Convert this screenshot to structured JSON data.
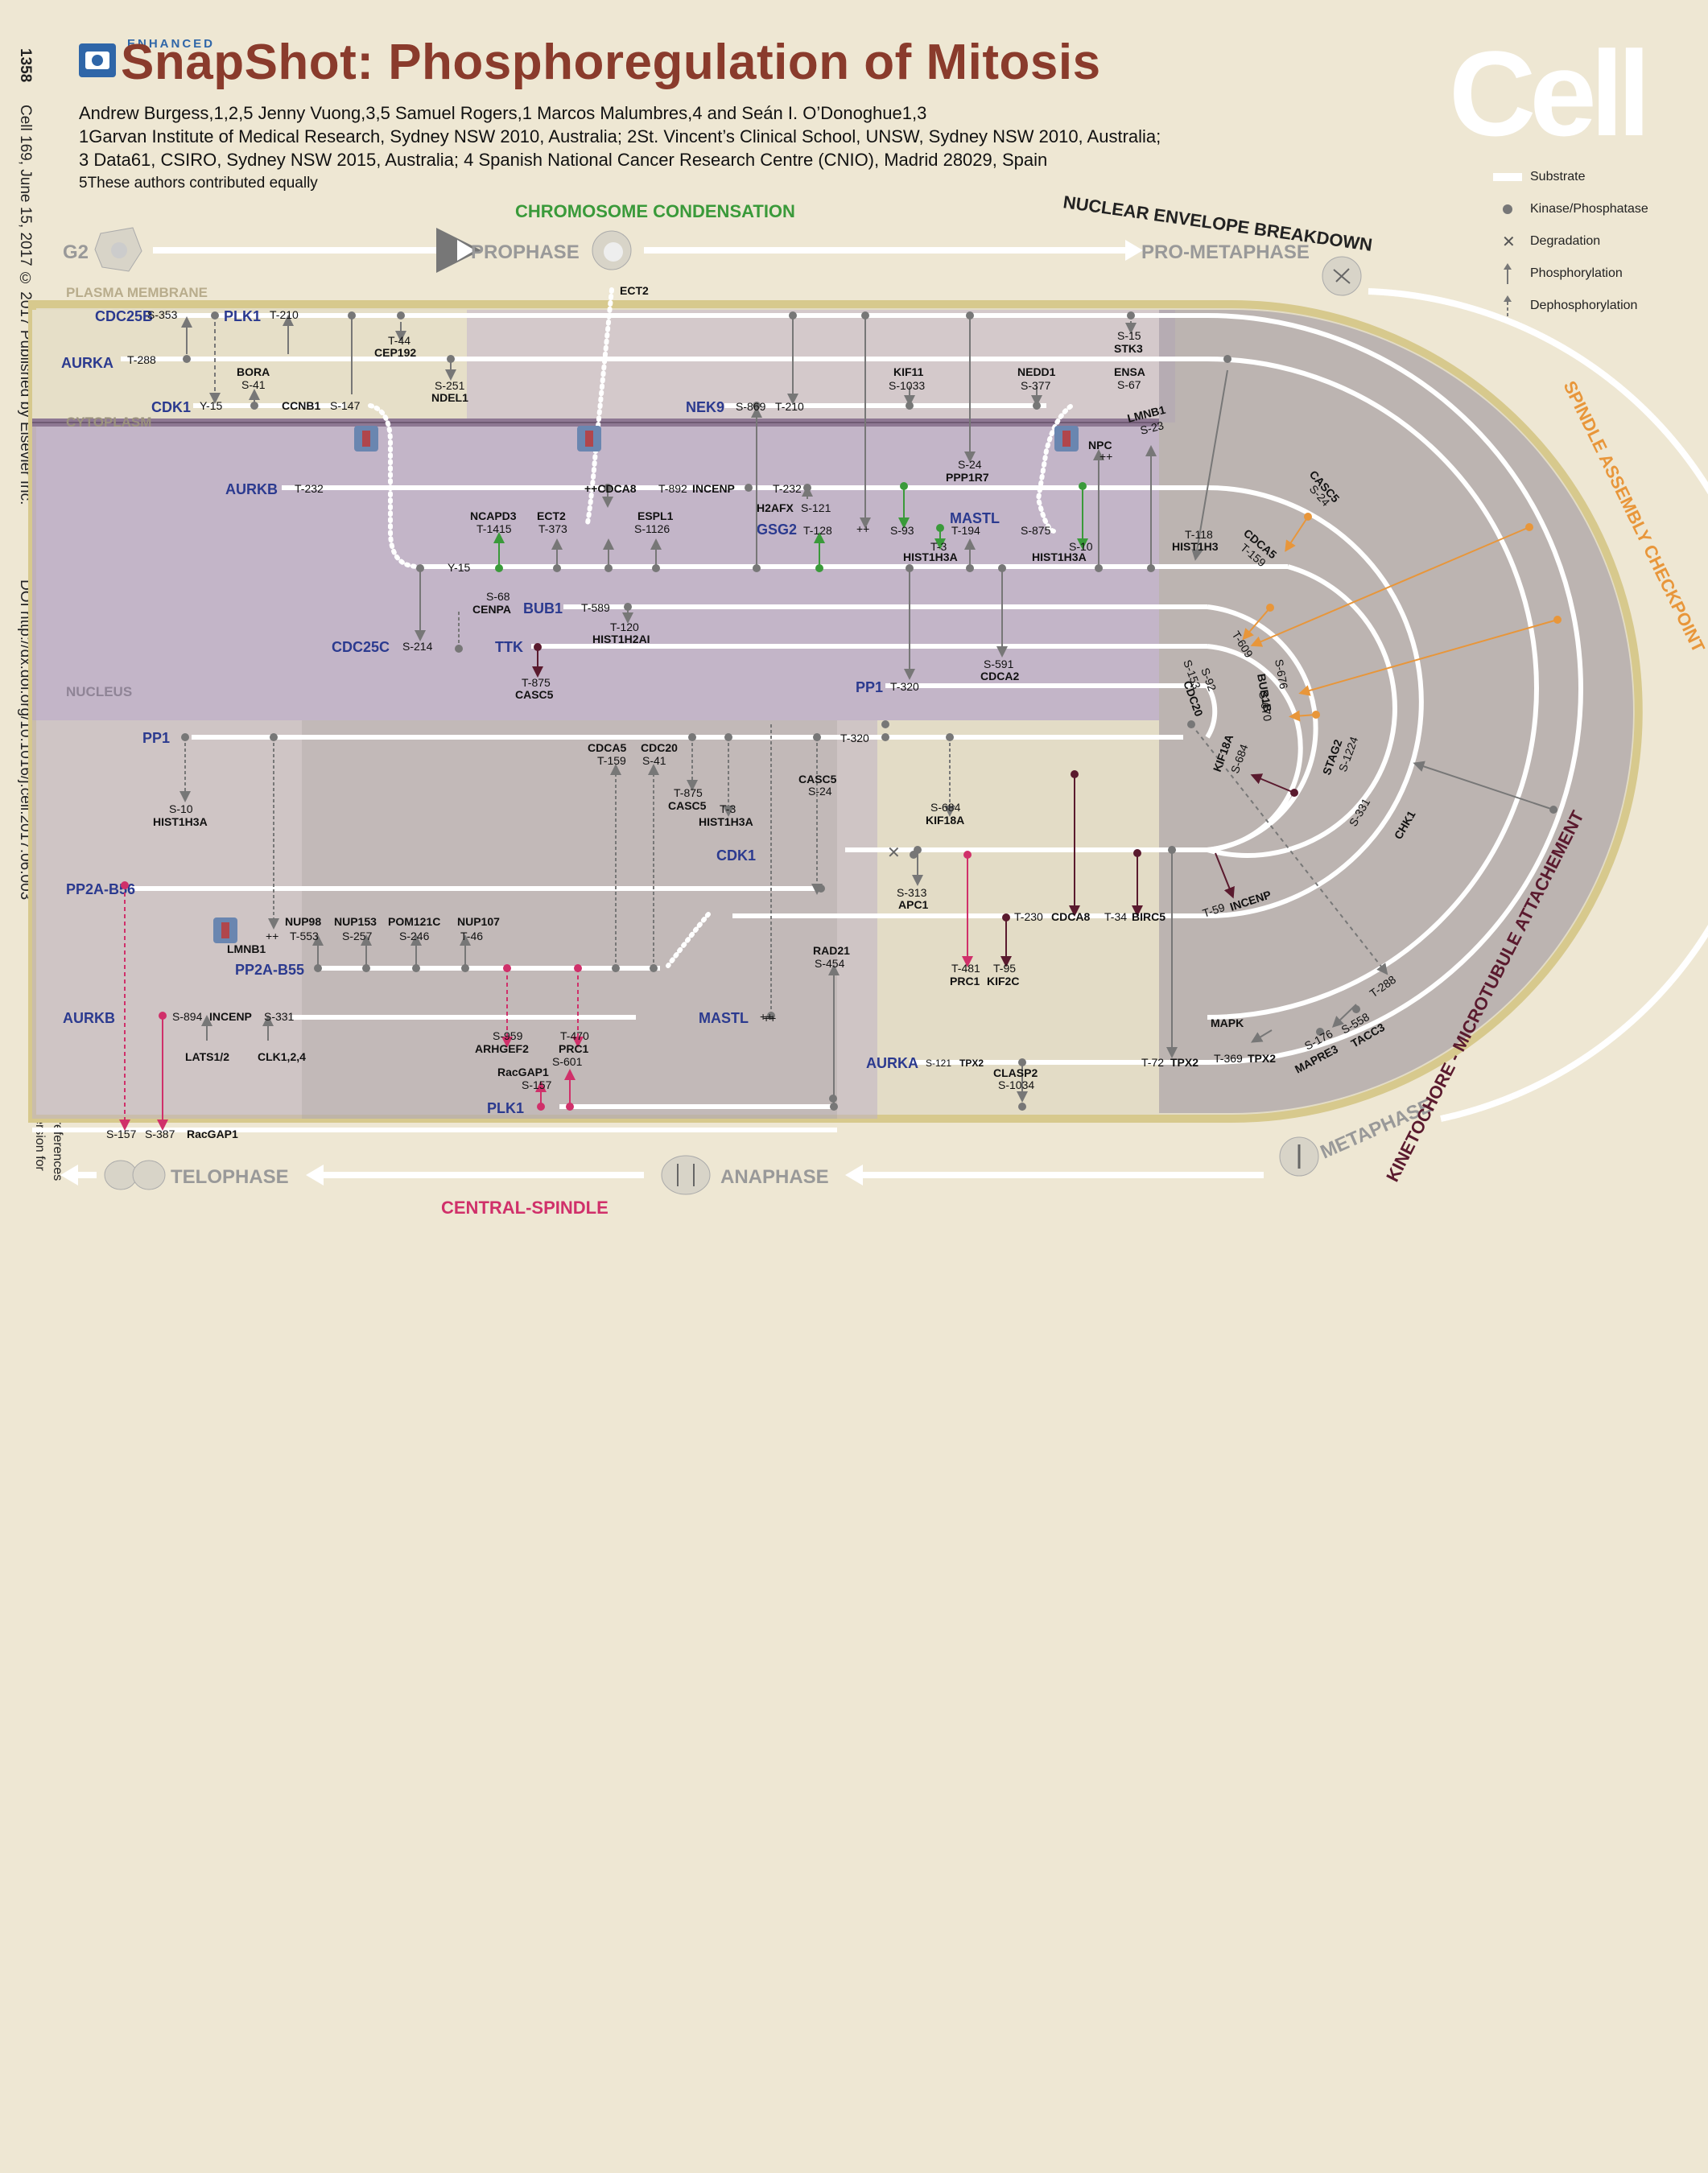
{
  "header": {
    "page_number": "1358",
    "journal_citation": "Cell 169, June 15, 2017 © 2017 Published by Elsevier Inc.",
    "doi": "DOI http://dx.doi.org/10.1016/j.cell.2017.06.003",
    "see_online": "See online version for",
    "see_online2": "legends and references",
    "enhanced": "ENHANCED",
    "title": "SnapShot: Phosphoregulation of Mitosis",
    "authors": "Andrew Burgess,1,2,5 Jenny Vuong,3,5 Samuel Rogers,1 Marcos Malumbres,4 and Seán I. O’Donoghue1,3",
    "affil1": "1Garvan Institute of Medical Research, Sydney NSW 2010, Australia; 2St. Vincent’s Clinical School, UNSW, Sydney NSW 2010, Australia;",
    "affil2": "3 Data61, CSIRO, Sydney NSW 2015, Australia; 4 Spanish National Cancer Research Centre (CNIO), Madrid 28029, Spain",
    "affil3": "5These authors contributed equally",
    "journal_logo": "Cell"
  },
  "legend": [
    {
      "icon": "substrate-bar",
      "label": "Substrate"
    },
    {
      "icon": "kinase-dot",
      "label": "Kinase/Phosphatase"
    },
    {
      "icon": "degradation-x",
      "label": "Degradation"
    },
    {
      "icon": "solid-arrow",
      "label": "Phosphorylation"
    },
    {
      "icon": "dashed-arrow",
      "label": "Dephosphorylation"
    }
  ],
  "phases": {
    "g2": "G2",
    "prophase": "PROPHASE",
    "prometaphase": "PRO-METAPHASE",
    "metaphase": "METAPHASE",
    "anaphase": "ANAPHASE",
    "telophase": "TELOPHASE",
    "chromosome_condensation": "CHROMOSOME CONDENSATION",
    "nuclear_envelope_breakdown": "NUCLEAR ENVELOPE BREAKDOWN",
    "spindle_assembly_checkpoint": "SPINDLE ASSEMBLY CHECKPOINT",
    "kinetochore_attachment": "KINETOCHORE - MICROTUBULE ATTACHEMENT",
    "central_spindle": "CENTRAL-SPINDLE"
  },
  "compartments": {
    "plasma_membrane": "PLASMA MEMBRANE",
    "cytoplasm": "CYTOPLASM",
    "nucleus": "NUCLEUS"
  },
  "colors": {
    "background": "#eee7d3",
    "title": "#8a3b2c",
    "kinase_label": "#2b3a8f",
    "green": "#3a9a3a",
    "orange": "#e8963a",
    "magenta": "#d0306a",
    "maroon": "#5a1a2e",
    "nucleus": "#b8a8c8"
  },
  "kinases": {
    "cdc25b": "CDC25B",
    "plk1_top": "PLK1",
    "aurka_top": "AURKA",
    "cdk1_top": "CDK1",
    "aurkb_top": "AURKB",
    "cdc25c": "CDC25C",
    "nek9": "NEK9",
    "gsg2": "GSG2",
    "mastl_top": "MASTL",
    "bub1": "BUB1",
    "ttk": "TTK",
    "pp1_mid": "PP1",
    "pp1_left": "PP1",
    "pp2a_b56": "PP2A-B56",
    "pp2a_b55": "PP2A-B55",
    "aurkb_bottom": "AURKB",
    "plk1_bottom": "PLK1",
    "mastl_bottom": "MASTL",
    "cdk1_bottom": "CDK1",
    "aurka_bottom": "AURKA"
  },
  "labels": [
    {
      "id": "l1",
      "text": "S-353"
    },
    {
      "id": "l2",
      "text": "T-210"
    },
    {
      "id": "l3",
      "text": "T-44"
    },
    {
      "id": "l4",
      "text": "CEP192"
    },
    {
      "id": "l5",
      "text": "T-288"
    },
    {
      "id": "l6",
      "text": "BORA"
    },
    {
      "id": "l7",
      "text": "S-41"
    },
    {
      "id": "l8",
      "text": "S-251"
    },
    {
      "id": "l9",
      "text": "NDEL1"
    },
    {
      "id": "l10",
      "text": "Y-15"
    },
    {
      "id": "l11",
      "text": "CCNB1"
    },
    {
      "id": "l12",
      "text": "S-147"
    },
    {
      "id": "l13",
      "text": "ECT2"
    },
    {
      "id": "l14",
      "text": "S-869"
    },
    {
      "id": "l15",
      "text": "T-210"
    },
    {
      "id": "l16",
      "text": "KIF11"
    },
    {
      "id": "l17",
      "text": "S-1033"
    },
    {
      "id": "l18",
      "text": "NEDD1"
    },
    {
      "id": "l19",
      "text": "S-377"
    },
    {
      "id": "l20",
      "text": "ENSA"
    },
    {
      "id": "l21",
      "text": "S-67"
    },
    {
      "id": "l22",
      "text": "S-15"
    },
    {
      "id": "l23",
      "text": "STK3"
    },
    {
      "id": "l24",
      "text": "LMNB1"
    },
    {
      "id": "l25",
      "text": "S-23"
    },
    {
      "id": "l26",
      "text": "NPC"
    },
    {
      "id": "l27",
      "text": "T-232"
    },
    {
      "id": "l28",
      "text": "++CDCA8"
    },
    {
      "id": "l29",
      "text": "T-892"
    },
    {
      "id": "l30",
      "text": "INCENP"
    },
    {
      "id": "l31",
      "text": "T-232"
    },
    {
      "id": "l32",
      "text": "S-24"
    },
    {
      "id": "l33",
      "text": "PPP1R7"
    },
    {
      "id": "l34",
      "text": "NCAPD3"
    },
    {
      "id": "l35",
      "text": "T-1415"
    },
    {
      "id": "l36",
      "text": "ECT2"
    },
    {
      "id": "l37",
      "text": "T-373"
    },
    {
      "id": "l38",
      "text": "ESPL1"
    },
    {
      "id": "l39",
      "text": "S-1126"
    },
    {
      "id": "l40",
      "text": "H2AFX"
    },
    {
      "id": "l41",
      "text": "S-121"
    },
    {
      "id": "l42",
      "text": "T-128"
    },
    {
      "id": "l43",
      "text": "++"
    },
    {
      "id": "l44",
      "text": "S-93"
    },
    {
      "id": "l45",
      "text": "T-194"
    },
    {
      "id": "l46",
      "text": "S-875"
    },
    {
      "id": "l47",
      "text": "T-3"
    },
    {
      "id": "l48",
      "text": "HIST1H3A"
    },
    {
      "id": "l49",
      "text": "S-10"
    },
    {
      "id": "l50",
      "text": "HIST1H3A"
    },
    {
      "id": "l51",
      "text": "T-118"
    },
    {
      "id": "l52",
      "text": "HIST1H3"
    },
    {
      "id": "l53",
      "text": "Y-15"
    },
    {
      "id": "l54",
      "text": "S-68"
    },
    {
      "id": "l55",
      "text": "CENPA"
    },
    {
      "id": "l56",
      "text": "T-589"
    },
    {
      "id": "l57",
      "text": "T-120"
    },
    {
      "id": "l58",
      "text": "HIST1H2AI"
    },
    {
      "id": "l59",
      "text": "S-214"
    },
    {
      "id": "l60",
      "text": "T-875"
    },
    {
      "id": "l61",
      "text": "CASC5"
    },
    {
      "id": "l62",
      "text": "S-591"
    },
    {
      "id": "l63",
      "text": "CDCA2"
    },
    {
      "id": "l64",
      "text": "T-320"
    },
    {
      "id": "l65",
      "text": "S-10"
    },
    {
      "id": "l66",
      "text": "HIST1H3A"
    },
    {
      "id": "l67",
      "text": "CDCA5"
    },
    {
      "id": "l68",
      "text": "T-159"
    },
    {
      "id": "l69",
      "text": "CDC20"
    },
    {
      "id": "l70",
      "text": "S-41"
    },
    {
      "id": "l71",
      "text": "T-875"
    },
    {
      "id": "l72",
      "text": "CASC5"
    },
    {
      "id": "l73",
      "text": "T-3"
    },
    {
      "id": "l74",
      "text": "HIST1H3A"
    },
    {
      "id": "l75",
      "text": "CASC5"
    },
    {
      "id": "l76",
      "text": "S-24"
    },
    {
      "id": "l77",
      "text": "T-320"
    },
    {
      "id": "l78",
      "text": "S-684"
    },
    {
      "id": "l79",
      "text": "KIF18A"
    },
    {
      "id": "l80",
      "text": "S-313"
    },
    {
      "id": "l81",
      "text": "APC1"
    },
    {
      "id": "l82",
      "text": "T-230"
    },
    {
      "id": "l83",
      "text": "CDCA8"
    },
    {
      "id": "l84",
      "text": "T-34"
    },
    {
      "id": "l85",
      "text": "BIRC5"
    },
    {
      "id": "l86",
      "text": "T-481"
    },
    {
      "id": "l87",
      "text": "PRC1"
    },
    {
      "id": "l88",
      "text": "T-95"
    },
    {
      "id": "l89",
      "text": "KIF2C"
    },
    {
      "id": "l90",
      "text": "NUP98"
    },
    {
      "id": "l91",
      "text": "T-553"
    },
    {
      "id": "l92",
      "text": "NUP153"
    },
    {
      "id": "l93",
      "text": "S-257"
    },
    {
      "id": "l94",
      "text": "POM121C"
    },
    {
      "id": "l95",
      "text": "S-246"
    },
    {
      "id": "l96",
      "text": "NUP107"
    },
    {
      "id": "l97",
      "text": "T-46"
    },
    {
      "id": "l98",
      "text": "LMNB1"
    },
    {
      "id": "l99",
      "text": "++"
    },
    {
      "id": "l100",
      "text": "RAD21"
    },
    {
      "id": "l101",
      "text": "S-454"
    },
    {
      "id": "l102",
      "text": "S-894"
    },
    {
      "id": "l103",
      "text": "INCENP"
    },
    {
      "id": "l104",
      "text": "S-331"
    },
    {
      "id": "l105",
      "text": "LATS1/2"
    },
    {
      "id": "l106",
      "text": "CLK1,2,4"
    },
    {
      "id": "l107",
      "text": "S-959"
    },
    {
      "id": "l108",
      "text": "ARHGEF2"
    },
    {
      "id": "l109",
      "text": "T-470"
    },
    {
      "id": "l110",
      "text": "PRC1"
    },
    {
      "id": "l111",
      "text": "S-601"
    },
    {
      "id": "l112",
      "text": "RacGAP1"
    },
    {
      "id": "l113",
      "text": "S-157"
    },
    {
      "id": "l114",
      "text": "++"
    },
    {
      "id": "l115",
      "text": "S-121"
    },
    {
      "id": "l116",
      "text": "TPX2"
    },
    {
      "id": "l117",
      "text": "CLASP2"
    },
    {
      "id": "l118",
      "text": "S-1034"
    },
    {
      "id": "l119",
      "text": "T-72"
    },
    {
      "id": "l120",
      "text": "TPX2"
    },
    {
      "id": "l121",
      "text": "MAPK"
    },
    {
      "id": "l122",
      "text": "T-369"
    },
    {
      "id": "l123",
      "text": "TPX2"
    },
    {
      "id": "l124",
      "text": "S-157"
    },
    {
      "id": "l125",
      "text": "S-387"
    },
    {
      "id": "l126",
      "text": "RacGAP1"
    },
    {
      "id": "l127",
      "text": "T-59"
    },
    {
      "id": "l128",
      "text": "INCENP"
    },
    {
      "id": "l129",
      "text": "T-288"
    },
    {
      "id": "l130",
      "text": "S-331"
    },
    {
      "id": "l131",
      "text": "CHK1"
    },
    {
      "id": "l132",
      "text": "S-558"
    },
    {
      "id": "l133",
      "text": "TACC3"
    },
    {
      "id": "l134",
      "text": "S-176"
    },
    {
      "id": "l135",
      "text": "MAPRE3"
    },
    {
      "id": "l136",
      "text": "++"
    },
    {
      "id": "l137",
      "text": "++"
    }
  ],
  "arc_labels": [
    {
      "id": "a1",
      "text": "CASC5"
    },
    {
      "id": "a2",
      "text": "S-24"
    },
    {
      "id": "a3",
      "text": "CDCA5"
    },
    {
      "id": "a4",
      "text": "T-159"
    },
    {
      "id": "a5",
      "text": "T-609"
    },
    {
      "id": "a6",
      "text": "S-153"
    },
    {
      "id": "a7",
      "text": "S-92"
    },
    {
      "id": "a8",
      "text": "CDC20"
    },
    {
      "id": "a9",
      "text": "S-676"
    },
    {
      "id": "a10",
      "text": "S-670"
    },
    {
      "id": "a11",
      "text": "BUB1B"
    },
    {
      "id": "a12",
      "text": "KIF18A"
    },
    {
      "id": "a13",
      "text": "S-684"
    },
    {
      "id": "a14",
      "text": "STAG2"
    },
    {
      "id": "a15",
      "text": "S-1224"
    }
  ]
}
